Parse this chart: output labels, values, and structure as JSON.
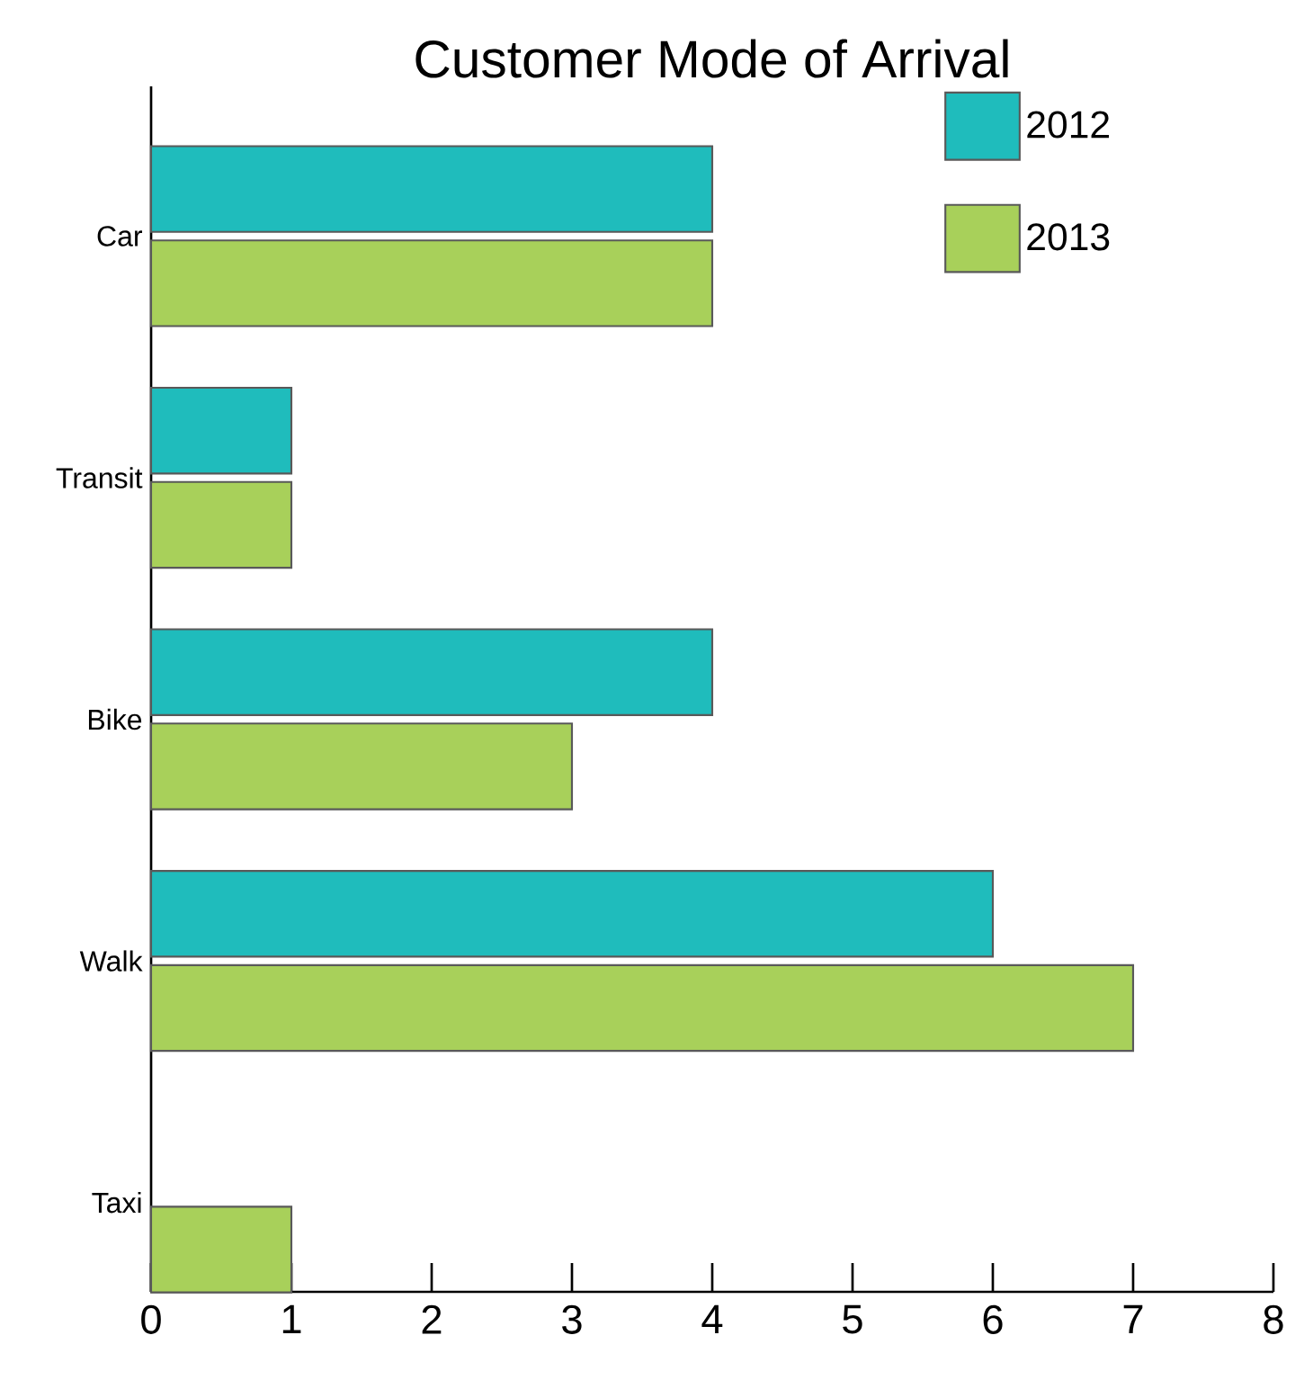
{
  "chart_data": {
    "type": "bar",
    "orientation": "horizontal",
    "title": "Customer Mode of Arrival",
    "categories": [
      "Car",
      "Transit",
      "Bike",
      "Walk",
      "Taxi"
    ],
    "series": [
      {
        "name": "2012",
        "color": "#1fbcbc",
        "values": [
          4,
          1,
          4,
          6,
          null
        ]
      },
      {
        "name": "2013",
        "color": "#a8d05a",
        "values": [
          4,
          1,
          3,
          7,
          1
        ]
      }
    ],
    "xlim": [
      0,
      8
    ],
    "xticks": [
      0,
      1,
      2,
      3,
      4,
      5,
      6,
      7,
      8
    ],
    "legend": "top right",
    "grid": false
  }
}
